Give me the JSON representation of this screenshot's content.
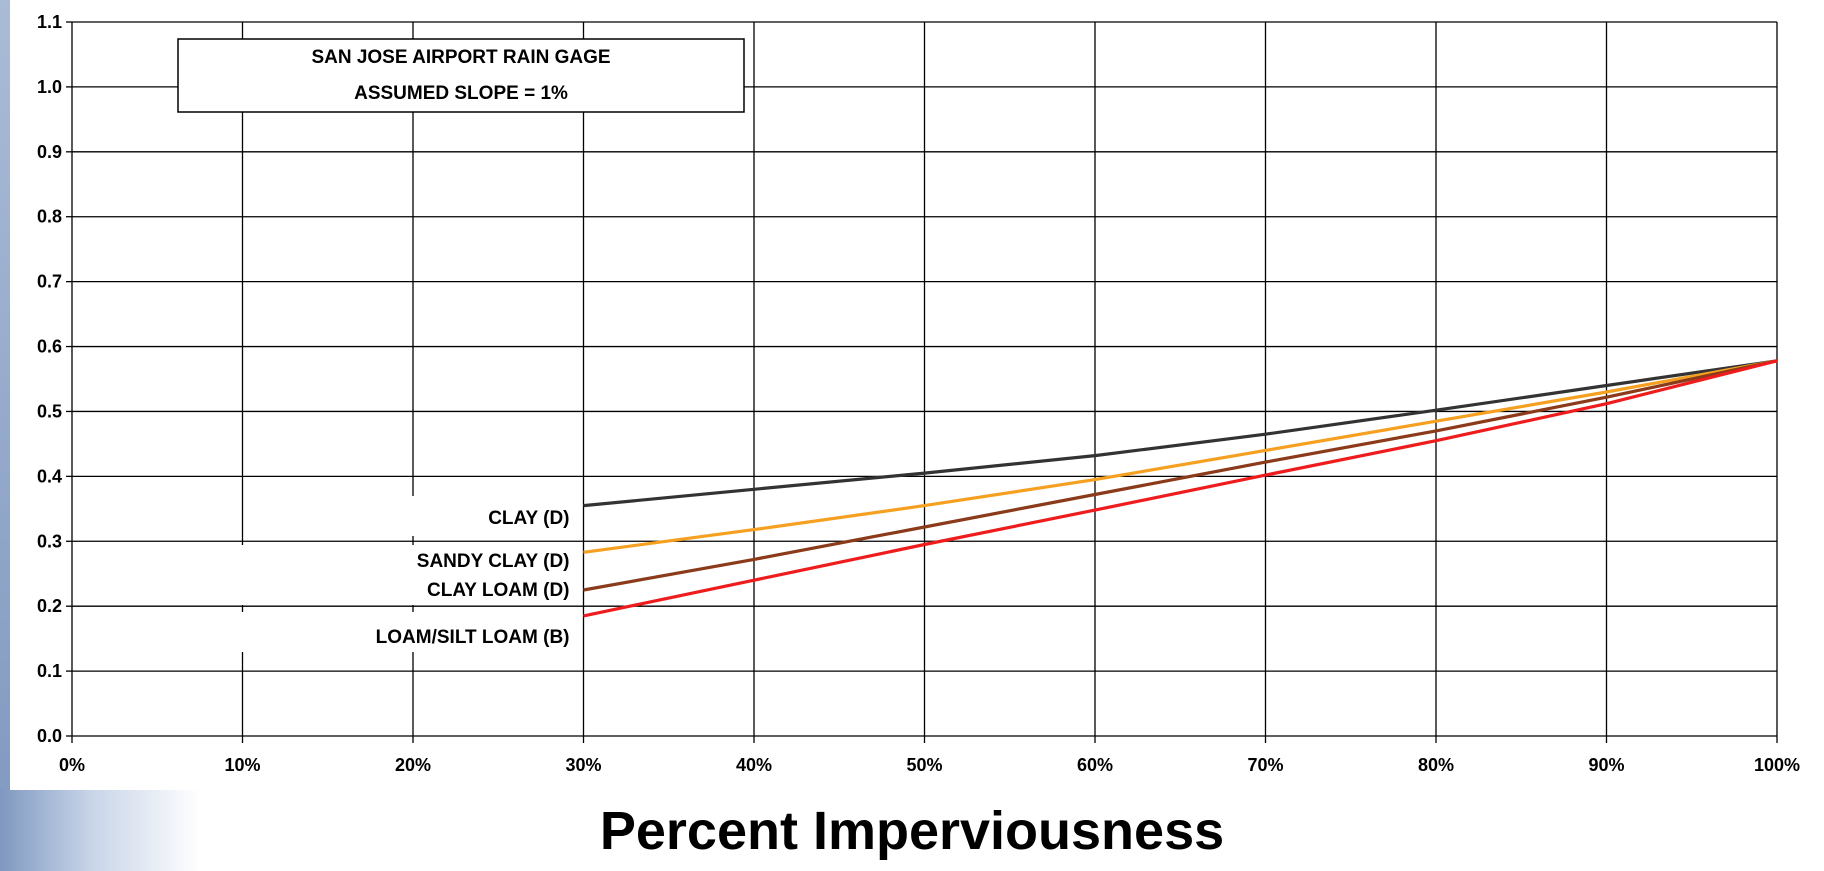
{
  "chart_data": {
    "type": "line",
    "xlabel": "Percent Imperviousness",
    "ylabel": "",
    "xlim": [
      0,
      100
    ],
    "ylim": [
      0,
      1.1
    ],
    "x_ticks": [
      0,
      10,
      20,
      30,
      40,
      50,
      60,
      70,
      80,
      90,
      100
    ],
    "x_tick_labels": [
      "0%",
      "10%",
      "20%",
      "30%",
      "40%",
      "50%",
      "60%",
      "70%",
      "80%",
      "90%",
      "100%"
    ],
    "y_ticks": [
      0,
      0.1,
      0.2,
      0.3,
      0.4,
      0.5,
      0.6,
      0.7,
      0.8,
      0.9,
      1.0,
      1.1
    ],
    "y_tick_labels": [
      "0.0",
      "0.1",
      "0.2",
      "0.3",
      "0.4",
      "0.5",
      "0.6",
      "0.7",
      "0.8",
      "0.9",
      "1.0",
      "1.1"
    ],
    "grid": true,
    "annotation_box": {
      "line1": "SAN JOSE AIRPORT RAIN GAGE",
      "line2": "ASSUMED SLOPE = 1%"
    },
    "series": [
      {
        "name": "CLAY (D)",
        "color": "#333333",
        "x": [
          30,
          40,
          50,
          60,
          70,
          80,
          90,
          100
        ],
        "y": [
          0.355,
          0.38,
          0.405,
          0.432,
          0.465,
          0.502,
          0.54,
          0.578
        ]
      },
      {
        "name": "SANDY CLAY (D)",
        "color": "#f5a020",
        "x": [
          30,
          40,
          50,
          60,
          70,
          80,
          90,
          100
        ],
        "y": [
          0.283,
          0.318,
          0.355,
          0.395,
          0.44,
          0.485,
          0.53,
          0.578
        ]
      },
      {
        "name": "CLAY LOAM (D)",
        "color": "#8b3a1a",
        "x": [
          30,
          40,
          50,
          60,
          70,
          80,
          90,
          100
        ],
        "y": [
          0.225,
          0.272,
          0.322,
          0.372,
          0.422,
          0.47,
          0.522,
          0.578
        ]
      },
      {
        "name": "LOAM/SILT LOAM (B)",
        "color": "#ee1c1c",
        "x": [
          30,
          40,
          50,
          60,
          70,
          80,
          90,
          100
        ],
        "y": [
          0.185,
          0.24,
          0.295,
          0.348,
          0.402,
          0.455,
          0.512,
          0.578
        ]
      }
    ]
  }
}
